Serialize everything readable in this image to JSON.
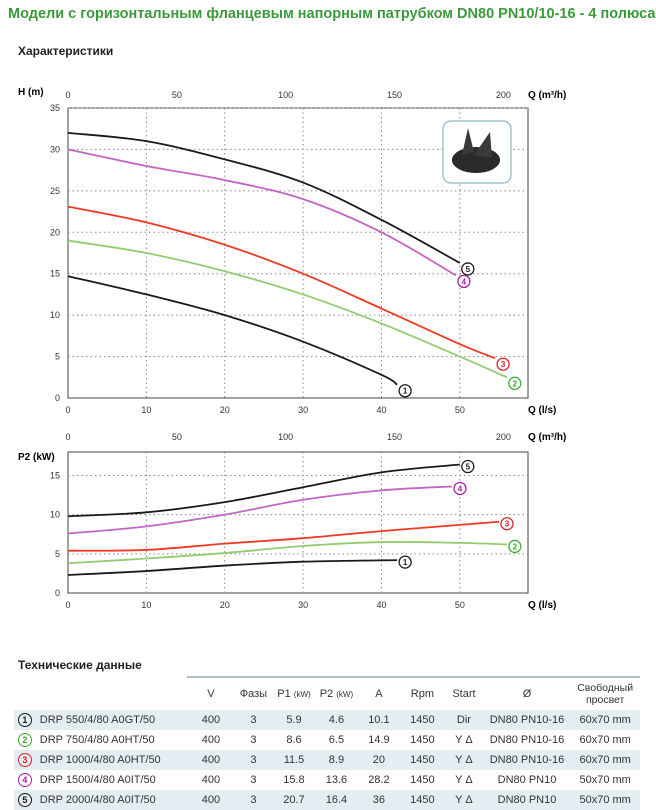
{
  "title": "Модели с горизонтальным фланцевым напорным патрубком DN80 PN10/10-16 - 4 полюса",
  "section_chart": "Характеристики",
  "section_table": "Технические данные",
  "chart_data": [
    {
      "type": "line",
      "ylabel": "H (m)",
      "xlabel": "Q (l/s)",
      "x2label": "Q (m³/h)",
      "xlim": [
        0,
        58.7
      ],
      "ylim": [
        0,
        35
      ],
      "xticks": [
        0,
        10,
        20,
        30,
        40,
        50
      ],
      "yticks": [
        0,
        5,
        10,
        15,
        20,
        25,
        30,
        35
      ],
      "x2ticks": [
        0,
        50,
        100,
        150,
        200
      ],
      "grid": true,
      "series": [
        {
          "name": "5",
          "color": "#1a1a1a",
          "label_color": "#1a1a1a",
          "x": [
            0,
            10,
            20,
            30,
            40,
            50
          ],
          "y": [
            32,
            31,
            28.8,
            26,
            21.5,
            16.3
          ]
        },
        {
          "name": "4",
          "color": "#c464c4",
          "label_color": "#a0209a",
          "x": [
            0,
            10,
            20,
            30,
            40,
            49.5
          ],
          "y": [
            30,
            28,
            26.3,
            24,
            20,
            14.8
          ]
        },
        {
          "name": "3",
          "color": "#ee3a22",
          "label_color": "#e0202a",
          "x": [
            0,
            10,
            20,
            30,
            40,
            50,
            54.5
          ],
          "y": [
            23.1,
            21.2,
            18.5,
            15,
            10.8,
            6.5,
            4.8
          ]
        },
        {
          "name": "2",
          "color": "#93cc70",
          "label_color": "#3aaa35",
          "x": [
            0,
            10,
            20,
            30,
            40,
            50,
            56
          ],
          "y": [
            19,
            17.5,
            15.3,
            12.5,
            9,
            5,
            2.5
          ]
        },
        {
          "name": "1",
          "color": "#1a1a1a",
          "label_color": "#1a1a1a",
          "x": [
            0,
            10,
            20,
            30,
            40,
            42
          ],
          "y": [
            14.7,
            12.5,
            10,
            6.8,
            2.8,
            1.6
          ]
        }
      ]
    },
    {
      "type": "line",
      "ylabel": "P2 (kW)",
      "xlabel": "Q (l/s)",
      "x2label": "Q (m³/h)",
      "xlim": [
        0,
        58.7
      ],
      "ylim": [
        0,
        18
      ],
      "xticks": [
        0,
        10,
        20,
        30,
        40,
        50
      ],
      "yticks": [
        0,
        5,
        10,
        15
      ],
      "x2ticks": [
        0,
        50,
        100,
        150,
        200
      ],
      "grid": true,
      "series": [
        {
          "name": "5",
          "color": "#1a1a1a",
          "label_color": "#1a1a1a",
          "x": [
            0,
            10,
            20,
            30,
            40,
            50
          ],
          "y": [
            9.8,
            10.3,
            11.6,
            13.5,
            15.4,
            16.4
          ]
        },
        {
          "name": "4",
          "color": "#c464c4",
          "label_color": "#a0209a",
          "x": [
            0,
            10,
            20,
            30,
            40,
            49
          ],
          "y": [
            7.6,
            8.5,
            10,
            11.9,
            13.1,
            13.6
          ]
        },
        {
          "name": "3",
          "color": "#ee3a22",
          "label_color": "#e0202a",
          "x": [
            0,
            10,
            20,
            30,
            40,
            50,
            55
          ],
          "y": [
            5.4,
            5.5,
            6.3,
            7,
            7.9,
            8.7,
            9.1
          ]
        },
        {
          "name": "2",
          "color": "#93cc70",
          "label_color": "#3aaa35",
          "x": [
            0,
            10,
            20,
            30,
            40,
            50,
            56
          ],
          "y": [
            3.8,
            4.4,
            5.1,
            6,
            6.5,
            6.4,
            6.2
          ]
        },
        {
          "name": "1",
          "color": "#1a1a1a",
          "label_color": "#1a1a1a",
          "x": [
            0,
            10,
            20,
            30,
            42
          ],
          "y": [
            2.3,
            2.8,
            3.5,
            4,
            4.2
          ]
        }
      ]
    }
  ],
  "table": {
    "headers": [
      "V",
      "Фазы",
      "P1",
      "P2",
      "A",
      "Rpm",
      "Start",
      "Ø",
      "Свободный просвет"
    ],
    "unit": "(kW)",
    "rows": [
      {
        "n": "1",
        "color": "#1a1a1a",
        "model": "DRP 550/4/80 A0GT/50",
        "v": "400",
        "ph": "3",
        "p1": "5.9",
        "p2": "4.6",
        "a": "10.1",
        "rpm": "1450",
        "start": "Dir",
        "d": "DN80 PN10-16",
        "free": "60x70 mm"
      },
      {
        "n": "2",
        "color": "#3aaa35",
        "model": "DRP 750/4/80 A0HT/50",
        "v": "400",
        "ph": "3",
        "p1": "8.6",
        "p2": "6.5",
        "a": "14.9",
        "rpm": "1450",
        "start": "Y Δ",
        "d": "DN80 PN10-16",
        "free": "60x70 mm"
      },
      {
        "n": "3",
        "color": "#e0202a",
        "model": "DRP 1000/4/80 A0HT/50",
        "v": "400",
        "ph": "3",
        "p1": "11.5",
        "p2": "8.9",
        "a": "20",
        "rpm": "1450",
        "start": "Y Δ",
        "d": "DN80 PN10-16",
        "free": "60x70 mm"
      },
      {
        "n": "4",
        "color": "#a0209a",
        "model": "DRP 1500/4/80 A0IT/50",
        "v": "400",
        "ph": "3",
        "p1": "15.8",
        "p2": "13.6",
        "a": "28.2",
        "rpm": "1450",
        "start": "Y Δ",
        "d": "DN80 PN10",
        "free": "50x70 mm"
      },
      {
        "n": "5",
        "color": "#1a1a1a",
        "model": "DRP 2000/4/80 A0IT/50",
        "v": "400",
        "ph": "3",
        "p1": "20.7",
        "p2": "16.4",
        "a": "36",
        "rpm": "1450",
        "start": "Y Δ",
        "d": "DN80 PN10",
        "free": "50x70 mm"
      }
    ]
  }
}
